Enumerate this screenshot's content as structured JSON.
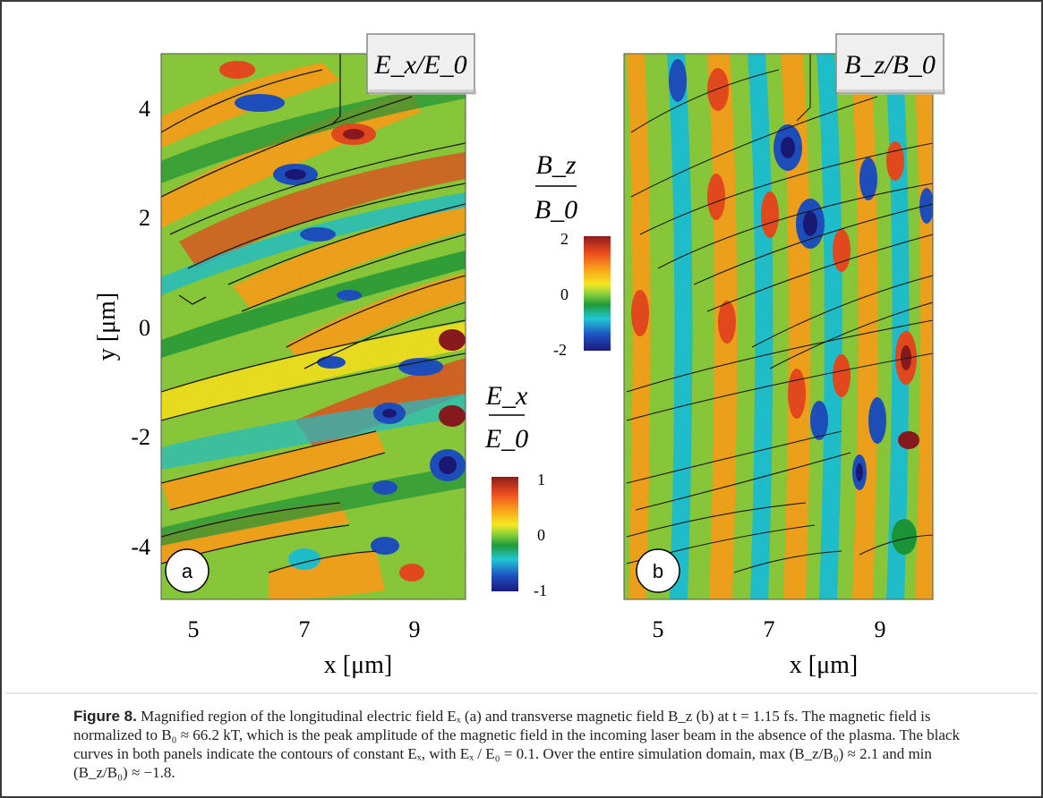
{
  "figure": {
    "caption_label": "Figure 8.",
    "caption_text": "Magnified region of the longitudinal electric field Eₓ (a) and transverse magnetic field B_z (b) at t = 1.15 fs. The magnetic field is normalized to B₀ ≈ 66.2 kT, which is the peak amplitude of the magnetic field in the incoming laser beam in the absence of the plasma. The black curves in both panels indicate the contours of constant Eₓ, with Eₓ / E₀ = 0.1. Over the entire simulation domain, max (B_z/B₀) ≈ 2.1 and min (B_z/B₀) ≈ −1.8."
  },
  "colors": {
    "colormap": [
      "#1b1a7a",
      "#1f52c4",
      "#21c7d4",
      "#1e9b3a",
      "#8ed13c",
      "#f4e721",
      "#f9a81c",
      "#ee4d1f",
      "#8e1b1e"
    ]
  },
  "chart_data": [
    {
      "type": "heatmap",
      "panel": "a",
      "title": "E_x/E_0",
      "xlabel": "x [μm]",
      "ylabel": "y [μm]",
      "xlim": [
        4.5,
        10
      ],
      "ylim": [
        -5,
        5
      ],
      "xticks": [
        "5",
        "7",
        "9"
      ],
      "yticks": [
        "4",
        "2",
        "0",
        "-2",
        "-4"
      ],
      "colorbar": {
        "label_num": "E_x",
        "label_den": "E_0",
        "range": [
          -1,
          1
        ],
        "ticks": [
          "1",
          "0",
          "-1"
        ]
      }
    },
    {
      "type": "heatmap",
      "panel": "b",
      "title": "B_z/B_0",
      "xlabel": "x [μm]",
      "xlim": [
        4.5,
        10
      ],
      "ylim": [
        -5,
        5
      ],
      "xticks": [
        "5",
        "7",
        "9"
      ],
      "colorbar": {
        "label_num": "B_z",
        "label_den": "B_0",
        "range": [
          -2,
          2
        ],
        "ticks": [
          "2",
          "0",
          "-2"
        ]
      }
    }
  ]
}
